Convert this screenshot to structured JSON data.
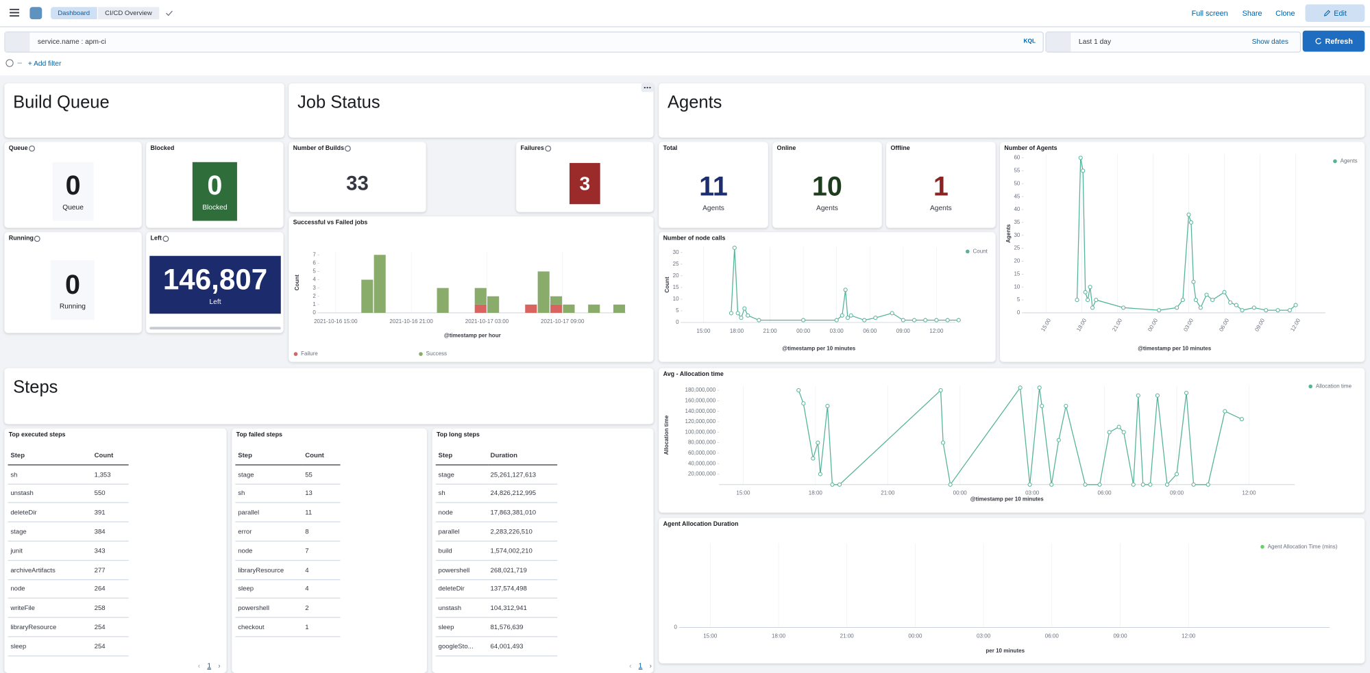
{
  "header": {
    "breadcrumbs": [
      "Dashboard",
      "CI/CD Overview"
    ],
    "actions": [
      "Full screen",
      "Share",
      "Clone"
    ],
    "edit": "Edit"
  },
  "query": {
    "text": "service.name : apm-ci",
    "language": "KQL",
    "time": "Last 1 day",
    "show_dates": "Show dates",
    "refresh": "Refresh",
    "add_filter": "+ Add filter"
  },
  "sections": {
    "build_queue": "Build Queue",
    "job_status": "Job Status",
    "agents": "Agents",
    "steps": "Steps"
  },
  "metrics": [
    {
      "title": "Queue",
      "value": 0,
      "label": "Queue"
    },
    {
      "title": "Blocked",
      "value": 0,
      "label": "Blocked"
    },
    {
      "title": "Running",
      "value": 0,
      "label": "Running"
    },
    {
      "title": "Left",
      "value": "146,807",
      "label": "Left"
    },
    {
      "title": "Number of Builds",
      "value": 33
    },
    {
      "title": "Failures",
      "value": 3
    },
    {
      "title": "Total",
      "value": 11,
      "label": "Agents"
    },
    {
      "title": "Online",
      "value": 10,
      "label": "Agents"
    },
    {
      "title": "Offline",
      "value": 1,
      "label": "Agents"
    }
  ],
  "chart_data": [
    {
      "type": "bar",
      "title": "Successful vs Failed jobs",
      "x_label": "@timestamp per hour",
      "y_label": "Count",
      "x": [
        17,
        18,
        23,
        26,
        27,
        30,
        31,
        32,
        33,
        35,
        37
      ],
      "xlim": [
        13.7,
        38
      ],
      "xticks": [
        {
          "value": 15,
          "label": "2021-10-16 15:00"
        },
        {
          "value": 21,
          "label": "2021-10-16 21:00"
        },
        {
          "value": 27,
          "label": "2021-10-17 03:00"
        },
        {
          "value": 33,
          "label": "2021-10-17 09:00"
        }
      ],
      "ylim": [
        0,
        7.3
      ],
      "yticks": [
        0,
        1,
        2,
        3,
        4,
        5,
        6,
        7
      ],
      "series": [
        {
          "name": "Failure",
          "color": "#d9645f",
          "values": [
            0,
            0,
            0,
            1,
            0,
            1,
            0,
            1,
            0,
            0,
            0
          ]
        },
        {
          "name": "Success",
          "color": "#8aac6a",
          "values": [
            4,
            7,
            3,
            2,
            2,
            0,
            5,
            1,
            1,
            1,
            1
          ]
        }
      ]
    },
    {
      "type": "line",
      "title": "Number of node calls",
      "x_label": "@timestamp per 10 minutes",
      "y_label": "Count",
      "x": [
        17.5,
        17.8,
        18.1,
        18.4,
        18.7,
        19,
        20,
        24,
        27,
        27.5,
        27.8,
        28,
        28.3,
        29.5,
        30.5,
        32,
        33,
        34,
        35,
        36,
        37,
        38
      ],
      "xlim": [
        13.1,
        37.7
      ],
      "xticks": [
        {
          "value": 15,
          "label": "15:00"
        },
        {
          "value": 18,
          "label": "18:00"
        },
        {
          "value": 21,
          "label": "21:00"
        },
        {
          "value": 24,
          "label": "00:00"
        },
        {
          "value": 27,
          "label": "03:00"
        },
        {
          "value": 30,
          "label": "06:00"
        },
        {
          "value": 33,
          "label": "09:00"
        },
        {
          "value": 36,
          "label": "12:00"
        }
      ],
      "ylim": [
        0,
        32.3
      ],
      "yticks": [
        0,
        5,
        10,
        15,
        20,
        25,
        30
      ],
      "series": [
        {
          "name": "Count",
          "color": "#54b399",
          "values": [
            4,
            32,
            4,
            2,
            6,
            3,
            1,
            1,
            1,
            3,
            14,
            2,
            3,
            1,
            2,
            4,
            1,
            1,
            1,
            1,
            1,
            1
          ]
        }
      ]
    },
    {
      "type": "line",
      "title": "Number of Agents",
      "x_label": "@timestamp per 10 minutes",
      "y_label": "Agents",
      "x": [
        17.6,
        17.9,
        18.1,
        18.3,
        18.5,
        18.7,
        18.9,
        19.2,
        21.5,
        24.5,
        26,
        26.5,
        27,
        27.2,
        27.4,
        27.6,
        28,
        28.5,
        29,
        30,
        30.5,
        31,
        31.5,
        32.5,
        33.5,
        34.5,
        35.5,
        36
      ],
      "xlim": [
        13.1,
        38.5
      ],
      "xticks": [
        {
          "value": 15,
          "label": "15:00"
        },
        {
          "value": 18,
          "label": "18:00"
        },
        {
          "value": 21,
          "label": "21:00"
        },
        {
          "value": 24,
          "label": "00:00"
        },
        {
          "value": 27,
          "label": "03:00"
        },
        {
          "value": 30,
          "label": "06:00"
        },
        {
          "value": 33,
          "label": "09:00"
        },
        {
          "value": 36,
          "label": "12:00"
        }
      ],
      "ylim": [
        0,
        61.4
      ],
      "yticks": [
        0,
        5,
        10,
        15,
        20,
        25,
        30,
        35,
        40,
        45,
        50,
        55,
        60
      ],
      "series": [
        {
          "name": "Agents",
          "color": "#54b399",
          "values": [
            5,
            60,
            55,
            8,
            5,
            10,
            2,
            5,
            2,
            1,
            2,
            5,
            38,
            35,
            12,
            5,
            2,
            7,
            5,
            8,
            4,
            3,
            1,
            2,
            1,
            1,
            1,
            3
          ]
        }
      ]
    },
    {
      "type": "line",
      "title": "Avg - Allocation time",
      "x_label": "@timestamp per 10 minutes",
      "y_label": "Allocation time",
      "x": [
        17.3,
        17.5,
        17.9,
        18.1,
        18.2,
        18.5,
        18.7,
        19.0,
        23.2,
        23.3,
        23.6,
        26.5,
        26.9,
        27.3,
        27.4,
        27.8,
        28.1,
        28.4,
        29.2,
        29.8,
        30.2,
        30.6,
        30.8,
        31.2,
        31.4,
        31.6,
        31.9,
        32.2,
        32.6,
        33.0,
        33.4,
        33.7,
        34.3,
        35.0,
        35.7
      ],
      "xlim": [
        14,
        37.9
      ],
      "xticks": [
        {
          "value": 15,
          "label": "15:00"
        },
        {
          "value": 18,
          "label": "18:00"
        },
        {
          "value": 21,
          "label": "21:00"
        },
        {
          "value": 24,
          "label": "00:00"
        },
        {
          "value": 27,
          "label": "03:00"
        },
        {
          "value": 30,
          "label": "06:00"
        },
        {
          "value": 33,
          "label": "09:00"
        },
        {
          "value": 36,
          "label": "12:00"
        }
      ],
      "ylim": [
        0,
        189000000
      ],
      "yticks": [
        {
          "value": 20000000,
          "label": "20,000,000"
        },
        {
          "value": 40000000,
          "label": "40,000,000"
        },
        {
          "value": 60000000,
          "label": "60,000,000"
        },
        {
          "value": 80000000,
          "label": "80,000,000"
        },
        {
          "value": 100000000,
          "label": "100,000,000"
        },
        {
          "value": 120000000,
          "label": "120,000,000"
        },
        {
          "value": 140000000,
          "label": "140,000,000"
        },
        {
          "value": 160000000,
          "label": "160,000,000"
        },
        {
          "value": 180000000,
          "label": "180,000,000"
        }
      ],
      "series": [
        {
          "name": "Allocation time",
          "color": "#54b399",
          "values": [
            180000000,
            155000000,
            50000000,
            80000000,
            20000000,
            150000000,
            0,
            0,
            180000000,
            80000000,
            0,
            185000000,
            0,
            185000000,
            150000000,
            0,
            85000000,
            150000000,
            0,
            0,
            100000000,
            110000000,
            100000000,
            0,
            170000000,
            0,
            0,
            170000000,
            0,
            20000000,
            175000000,
            0,
            0,
            140000000,
            125000000
          ]
        }
      ]
    },
    {
      "type": "line",
      "title": "Agent Allocation Duration",
      "x_label": "per 10 minutes",
      "x": [],
      "xlim": [
        13.7,
        42.2
      ],
      "xticks": [
        {
          "value": 15,
          "label": "15:00"
        },
        {
          "value": 18,
          "label": "18:00"
        },
        {
          "value": 21,
          "label": "21:00"
        },
        {
          "value": 24,
          "label": "00:00"
        },
        {
          "value": 27,
          "label": "03:00"
        },
        {
          "value": 30,
          "label": "06:00"
        },
        {
          "value": 33,
          "label": "09:00"
        },
        {
          "value": 36,
          "label": "12:00"
        }
      ],
      "ylim": [
        0,
        1
      ],
      "yticks": [
        0
      ],
      "series": [
        {
          "name": "Agent Allocation Time (mins)",
          "color": "#6dcc6d",
          "values": []
        }
      ]
    }
  ],
  "tables": [
    {
      "title": "Top executed steps",
      "columns": [
        "Step",
        "Count"
      ],
      "page": 1,
      "rows": [
        [
          "sh",
          "1,353"
        ],
        [
          "unstash",
          "550"
        ],
        [
          "deleteDir",
          "391"
        ],
        [
          "stage",
          "384"
        ],
        [
          "junit",
          "343"
        ],
        [
          "archiveArtifacts",
          "277"
        ],
        [
          "node",
          "264"
        ],
        [
          "writeFile",
          "258"
        ],
        [
          "libraryResource",
          "254"
        ],
        [
          "sleep",
          "254"
        ]
      ]
    },
    {
      "title": "Top failed steps",
      "columns": [
        "Step",
        "Count"
      ],
      "rows": [
        [
          "stage",
          "55"
        ],
        [
          "sh",
          "13"
        ],
        [
          "parallel",
          "11"
        ],
        [
          "error",
          "8"
        ],
        [
          "node",
          "7"
        ],
        [
          "libraryResource",
          "4"
        ],
        [
          "sleep",
          "4"
        ],
        [
          "powershell",
          "2"
        ],
        [
          "checkout",
          "1"
        ]
      ]
    },
    {
      "title": "Top long steps",
      "columns": [
        "Step",
        "Duration"
      ],
      "page": 1,
      "rows": [
        [
          "stage",
          "25,261,127,613"
        ],
        [
          "sh",
          "24,826,212,995"
        ],
        [
          "node",
          "17,863,381,010"
        ],
        [
          "parallel",
          "2,283,226,510"
        ],
        [
          "build",
          "1,574,002,210"
        ],
        [
          "powershell",
          "268,021,719"
        ],
        [
          "deleteDir",
          "137,574,498"
        ],
        [
          "unstash",
          "104,312,941"
        ],
        [
          "sleep",
          "81,576,639"
        ],
        [
          "googleSto...",
          "64,001,493"
        ]
      ]
    }
  ]
}
